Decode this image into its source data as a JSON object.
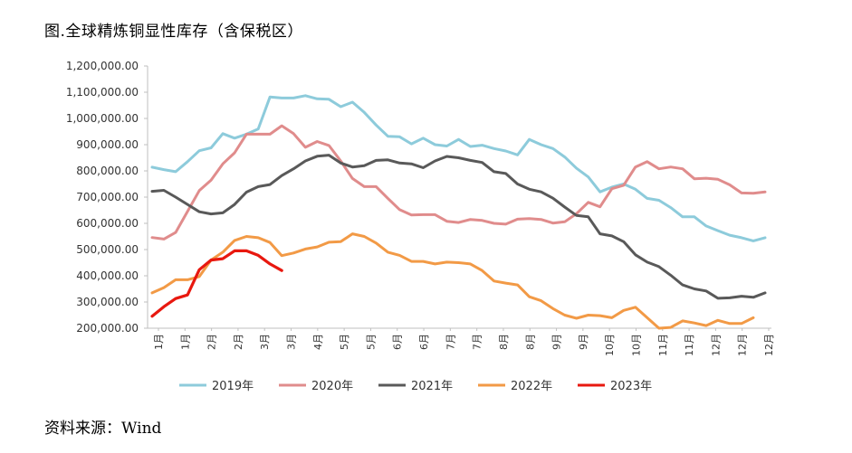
{
  "title": "图.全球精炼铜显性库存（含保税区）",
  "source": "资料来源：Wind",
  "chart_data": {
    "type": "line",
    "ylim": [
      200000,
      1200000
    ],
    "yticks": [
      "1,200,000.00",
      "1,100,000.00",
      "1,000,000.00",
      "900,000.00",
      "800,000.00",
      "700,000.00",
      "600,000.00",
      "500,000.00",
      "400,000.00",
      "300,000.00",
      "200,000.00"
    ],
    "x_labels": [
      "1月",
      "1月",
      "2月",
      "2月",
      "3月",
      "3月",
      "4月",
      "5月",
      "5月",
      "6月",
      "6月",
      "7月",
      "7月",
      "8月",
      "8月",
      "9月",
      "9月",
      "10月",
      "10月",
      "11月",
      "11月",
      "12月",
      "12月",
      "12月"
    ],
    "n_weeks": 53,
    "grid": false,
    "legend_position": "bottom",
    "series": [
      {
        "name": "2019年",
        "color": "#8dcbdb",
        "values": [
          814000,
          805000,
          797000,
          835000,
          877000,
          888000,
          942000,
          925000,
          940000,
          960000,
          1082000,
          1078000,
          1078000,
          1087000,
          1075000,
          1073000,
          1045000,
          1062000,
          1023000,
          975000,
          932000,
          930000,
          903000,
          925000,
          900000,
          895000,
          920000,
          893000,
          898000,
          885000,
          876000,
          861000,
          920000,
          900000,
          885000,
          853000,
          810000,
          777000,
          720000,
          738000,
          750000,
          730000,
          695000,
          688000,
          660000,
          625000,
          625000,
          590000,
          572000,
          555000,
          545000,
          533000,
          545000
        ]
      },
      {
        "name": "2020年",
        "color": "#e08c8c",
        "values": [
          546000,
          540000,
          565000,
          645000,
          725000,
          765000,
          827000,
          869000,
          940000,
          940000,
          940000,
          972000,
          942000,
          890000,
          912000,
          897000,
          838000,
          771000,
          740000,
          740000,
          695000,
          652000,
          632000,
          633000,
          633000,
          608000,
          603000,
          615000,
          611000,
          600000,
          597000,
          616000,
          618000,
          615000,
          601000,
          606000,
          637000,
          680000,
          663000,
          732000,
          745000,
          815000,
          835000,
          808000,
          815000,
          808000,
          770000,
          772000,
          768000,
          747000,
          716000,
          715000,
          720000
        ]
      },
      {
        "name": "2021年",
        "color": "#595959",
        "values": [
          722000,
          726000,
          700000,
          672000,
          644000,
          636000,
          640000,
          672000,
          719000,
          740000,
          748000,
          782000,
          808000,
          838000,
          856000,
          860000,
          830000,
          815000,
          820000,
          840000,
          842000,
          830000,
          827000,
          812000,
          838000,
          855000,
          850000,
          840000,
          832000,
          797000,
          790000,
          750000,
          730000,
          720000,
          696000,
          662000,
          630000,
          625000,
          560000,
          552000,
          530000,
          480000,
          452000,
          435000,
          402000,
          365000,
          350000,
          342000,
          314000,
          316000,
          322000,
          318000,
          335000
        ]
      },
      {
        "name": "2022年",
        "color": "#f29a46",
        "values": [
          335000,
          355000,
          385000,
          385000,
          397000,
          460000,
          490000,
          535000,
          550000,
          545000,
          527000,
          477000,
          487000,
          502000,
          510000,
          528000,
          530000,
          560000,
          550000,
          525000,
          490000,
          478000,
          455000,
          455000,
          445000,
          452000,
          450000,
          445000,
          420000,
          380000,
          372000,
          365000,
          320000,
          305000,
          275000,
          250000,
          238000,
          250000,
          248000,
          240000,
          268000,
          280000,
          240000,
          200000,
          203000,
          228000,
          220000,
          210000,
          230000,
          218000,
          218000,
          240000,
          null
        ]
      },
      {
        "name": "2023年",
        "color": "#e8180f",
        "values": [
          246000,
          282000,
          313000,
          327000,
          423000,
          460000,
          465000,
          495000,
          495000,
          478000,
          445000,
          420000
        ]
      }
    ]
  }
}
